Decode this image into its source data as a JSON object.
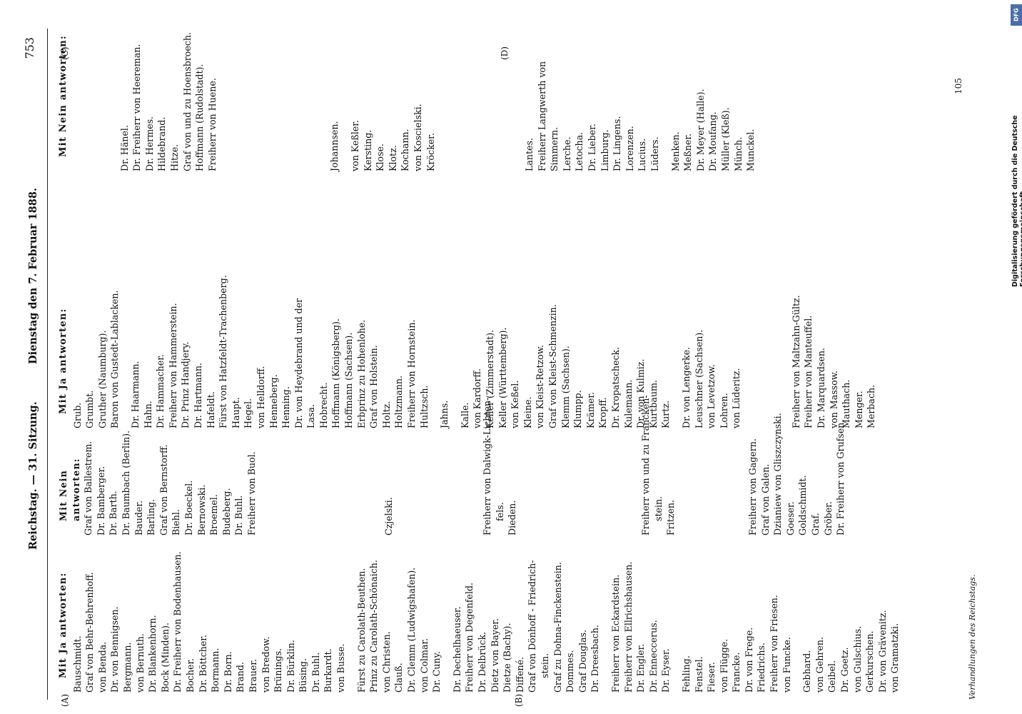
{
  "header": {
    "left": "Reichstag. — 31. Sitzung.",
    "center": "Dienstag den 7. Februar 1888.",
    "page_number": "753"
  },
  "markers": {
    "A": "(A)",
    "B": "(B)",
    "C": "(C)",
    "D": "(D)"
  },
  "page_bottom_number": "105",
  "footer_left": "Verhandlungen des Reichstags.",
  "sidebar": {
    "logo": "DFG",
    "credit": "Digitalisierung gefördert durch die Deutsche Forschungsgemeinschaft"
  },
  "col1": {
    "heading": "Mit Ja antworten:",
    "names": [
      "Bauschmidt.",
      "Graf von Behr-Behrenhoff.",
      "von Benda.",
      "Dr. von Bennigsen.",
      "Bergmann.",
      "von Bernuth.",
      "Dr. Blankenhorn.",
      "Bock (Minden).",
      "Dr. Freiherr von Bodenhausen.",
      "Bocher.",
      "Dr. Böttcher.",
      "Bormann.",
      "Dr. Born.",
      "Brand.",
      "Brauer.",
      "von Bredow.",
      "Brünings.",
      "Dr. Bürklin.",
      "Büsing.",
      "Dr. Buhl.",
      "Burkardt.",
      "von Busse.",
      "",
      "Fürst zu Carolath-Beuthen.",
      "Prinz zu Carolath-Schönaich.",
      "von Christen.",
      "Clauß.",
      "Dr. Clemm (Ludwigshafen).",
      "von Colmar.",
      "Dr. Cuny.",
      "",
      "Dr. Dechelhaeuser.",
      "Freiherr von Degenfeld.",
      "Dr. Delbrück.",
      "Dietz von Bayer.",
      "Dietze (Bachy).",
      "Diffené.",
      "Graf von Dönhoff - Friedrich-",
      "stein.",
      "Graf zu Dohna-Finckenstein.",
      "Dommes.",
      "Graf Douglas.",
      "Dr. Dreesbach.",
      "",
      "Freiherr von Eckardstein.",
      "Freiherr von Ellrichshausen.",
      "Dr. Engler.",
      "Dr. Enneccerus.",
      "Dr. Eyser.",
      "",
      "Fehling.",
      "Fenstel.",
      "Fieser.",
      "von Flügge.",
      "Francke.",
      "Dr. von Frege.",
      "Friedrichs.",
      "Freiherr von Friesen.",
      "von Funcke.",
      "",
      "Gebhard.",
      "von Gehren.",
      "Geibel.",
      "Dr. Goetz.",
      "von Gulschius.",
      "Gerkurschen.",
      "Dr. von Grävenitz.",
      "von Gramatzki."
    ]
  },
  "col1b": {
    "heading": "Mit Nein antworten:",
    "names": [
      "Graf von Ballestrem.",
      "Dr. Bamberger.",
      "Dr. Barth.",
      "Dr. Baumbach (Berlin).",
      "Bauder.",
      "Barling.",
      "Graf von Bernstorff.",
      "Biehl.",
      "Dr. Boeckel.",
      "Bernowski.",
      "Broemel.",
      "Budeberg.",
      "Dr. Buhl.",
      "Freiherr von Buol."
    ],
    "names2": [
      "Czjelski."
    ],
    "names3": [
      "Freiherr von Dalwigk-Lichten-",
      "fels.",
      "Dieden."
    ],
    "names4": [
      "Freiherr von und zu Francken-",
      "stein.",
      "Fritzen."
    ],
    "names5": [
      "Freiherr von Gagern.",
      "Graf von Galen.",
      "Dzianiew von Gliszczynski.",
      "Goeser.",
      "Goldschmidt.",
      "Graf.",
      "Gröber.",
      "Dr. Freiherr von Grufsen."
    ]
  },
  "col2": {
    "heading": "Mit Ja antworten:",
    "names": [
      "Grub.",
      "Grumbt.",
      "Gruther (Naumburg).",
      "Baron von Gustedt-Lablacken.",
      "",
      "Dr. Haarmann.",
      "Hahn.",
      "Dr. Hammacher.",
      "Freiherr von Hammerstein.",
      "Dr. Prinz Handjery.",
      "Dr. Hartmann.",
      "Hafeldt.",
      "Fürst von Hatzfeldt-Trachenberg.",
      "Haupt.",
      "Hegel.",
      "von Helldorff.",
      "Henneberg.",
      "Henning.",
      "Dr. von Heydebrand und der",
      "Lasa.",
      "Hobrecht.",
      "Hoffmann (Königsberg).",
      "Hoffmann (Sachsen).",
      "Erbprinz zu Hohenlohe.",
      "Graf von Holstein.",
      "Holtz.",
      "Holtzmann.",
      "Freiherr von Hornstein.",
      "Hultzsch.",
      "",
      "Jahns.",
      "",
      "Kalle.",
      "von Kardorff.",
      "Keller (Zimmerstadt).",
      "Keller (Württemberg).",
      "von Keßel.",
      "Kleine.",
      "von Kleist-Retzow.",
      "Graf von Kleist-Schmenzin.",
      "Klemm (Sachsen).",
      "Klumpp.",
      "Krämer.",
      "Kropff.",
      "Dr. Kropatscheck.",
      "Kulemann.",
      "Dr. von Kulmiz.",
      "Kurtbaum.",
      "Kurtz.",
      "",
      "Dr. von Lengerke.",
      "Leuschner (Sachsen).",
      "von Levetzow.",
      "Lohren.",
      "von Lüderitz.",
      "",
      "",
      "",
      "",
      "",
      "",
      "Freiherr von Maltzahn-Gültz.",
      "Freiherr von Manteuffel.",
      "Dr. Marquardsen.",
      "von Massow.",
      "Mauthach.",
      "Menger.",
      "Merbach."
    ]
  },
  "col3": {
    "heading": "Mit Nein antworten:",
    "names": [
      "",
      "",
      "",
      "",
      "",
      "",
      "Dr. Hänel.",
      "Dr. Freiherr von Heereman.",
      "Dr. Hermes.",
      "Hildebrand.",
      "Hitze.",
      "Graf von und zu Hoensbroech.",
      "Hoffmann (Rudolstadt).",
      "Freiherr von Huene.",
      "",
      "",
      "",
      "",
      "",
      "",
      "",
      "",
      "",
      "",
      "",
      "",
      "",
      "",
      "Johannsen.",
      "",
      "von Keßler.",
      "Kersting.",
      "Klose.",
      "Klotz.",
      "Kochann.",
      "von Koscielski.",
      "Kröcker.",
      "",
      "",
      "",
      "",
      "",
      "",
      "",
      "",
      "",
      "",
      "",
      "Lantes.",
      "Freiherr Langwerth von",
      "Simmern.",
      "Lerche.",
      "Letocha.",
      "Dr. Lieber.",
      "Limburg.",
      "Dr. Lingens.",
      "Lorenzen.",
      "Lucius.",
      "Lüders.",
      "",
      "Menken.",
      "Meßner.",
      "Dr. Meyer (Halle).",
      "Dr. Moufang.",
      "Müller (Kleß).",
      "Münch.",
      "Munckel."
    ]
  }
}
